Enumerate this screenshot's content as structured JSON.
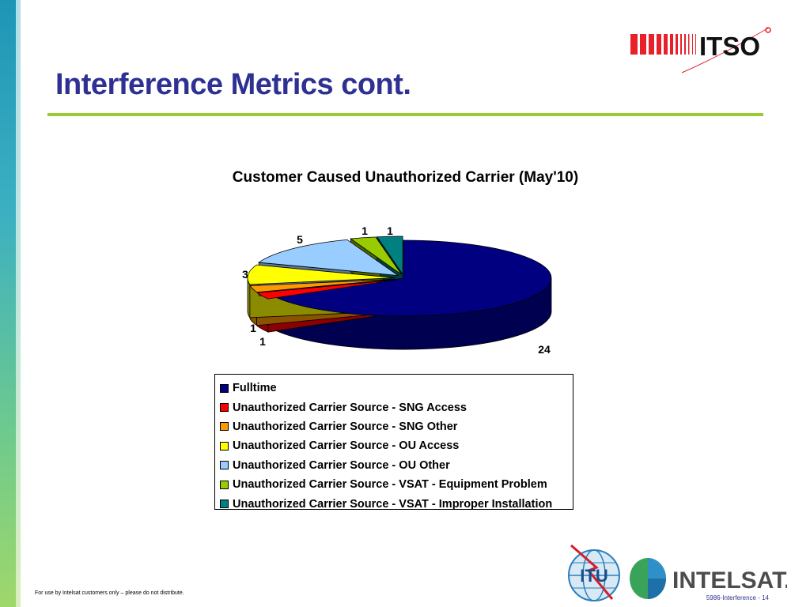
{
  "slide": {
    "title": "Interference Metrics cont.",
    "footer_note": "For use by Intelsat customers only – please do not distribute.",
    "page_label": "5986-Interference - 14",
    "logos": {
      "top_right": "ITSO",
      "bottom_left": "ITU",
      "bottom_right": "INTELSAT."
    }
  },
  "colors": {
    "title": "#2e3192",
    "rule": "#99cc33"
  },
  "chart_data": {
    "type": "pie",
    "title": "Customer Caused Unauthorized Carrier (May'10)",
    "style": "3d-exploded",
    "legend_position": "bottom",
    "slices": [
      {
        "name": "Fulltime",
        "value": 24,
        "label": "24",
        "color": "#000080",
        "side": "#000050"
      },
      {
        "name": "Unauthorized Carrier Source - SNG Access",
        "value": 1,
        "label": "1",
        "color": "#ff0000",
        "side": "#8b0000"
      },
      {
        "name": "Unauthorized Carrier Source - SNG Other",
        "value": 1,
        "label": "1",
        "color": "#ff9900",
        "side": "#8b5200"
      },
      {
        "name": "Unauthorized Carrier Source - OU Access",
        "value": 3,
        "label": "3",
        "color": "#ffff00",
        "side": "#8b8b00"
      },
      {
        "name": "Unauthorized Carrier Source - OU Other",
        "value": 5,
        "label": "5",
        "color": "#99ccff",
        "side": "#5a7a99"
      },
      {
        "name": "Unauthorized Carrier Source - VSAT - Equipment Problem",
        "value": 1,
        "label": "1",
        "color": "#99cc00",
        "side": "#4d6600"
      },
      {
        "name": "Unauthorized Carrier Source - VSAT - Improper Installation",
        "value": 1,
        "label": "1",
        "color": "#008080",
        "side": "#004040"
      }
    ]
  }
}
